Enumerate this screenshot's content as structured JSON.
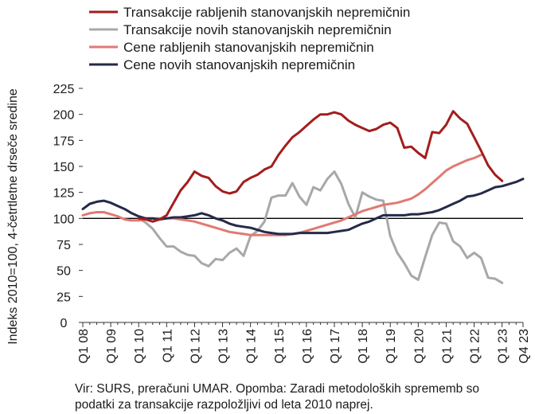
{
  "chart_data": {
    "type": "line",
    "title": "",
    "xlabel": "",
    "ylabel": "Indeks 2010=100, 4-četrtletne drseče sredine",
    "ylim": [
      0,
      225
    ],
    "yticks": [
      0,
      25,
      50,
      75,
      100,
      125,
      150,
      175,
      200,
      225
    ],
    "reference_line": 100,
    "grid": false,
    "legend_position": "top",
    "x_start": "Q1 08",
    "x_end": "Q4 23",
    "x_ticks": [
      "Q1 08",
      "Q1 09",
      "Q1 10",
      "Q1 11",
      "Q1 12",
      "Q1 13",
      "Q1 14",
      "Q1 15",
      "Q1 16",
      "Q1 17",
      "Q1 18",
      "Q1 19",
      "Q1 20",
      "Q1 21",
      "Q1 22",
      "Q1 23",
      "Q4 23"
    ],
    "series": [
      {
        "name": "Transakcije rabljenih stanovanjskih nepremičnin",
        "color": "#a31d1d",
        "start_index": 8,
        "values": [
          100,
          99,
          97,
          99,
          103,
          115,
          127,
          135,
          145,
          141,
          139,
          131,
          126,
          124,
          126,
          135,
          139,
          142,
          147,
          150,
          161,
          170,
          178,
          183,
          189,
          195,
          200,
          200,
          202,
          200,
          194,
          190,
          187,
          184,
          186,
          190,
          192,
          187,
          168,
          169,
          163,
          158,
          183,
          182,
          190,
          203,
          196,
          191,
          178,
          165,
          151,
          142,
          136
        ]
      },
      {
        "name": "Transakcije novih stanovanjskih nepremičnin",
        "color": "#a6a8ab",
        "start_index": 8,
        "values": [
          100,
          96,
          90,
          81,
          73,
          73,
          68,
          65,
          64,
          57,
          54,
          61,
          60,
          67,
          71,
          64,
          83,
          88,
          97,
          120,
          122,
          122,
          134,
          121,
          113,
          130,
          127,
          138,
          145,
          133,
          114,
          101,
          125,
          121,
          118,
          117,
          83,
          67,
          57,
          45,
          41,
          63,
          84,
          96,
          95,
          78,
          73,
          62,
          67,
          62,
          43,
          42,
          38
        ]
      },
      {
        "name": "Cene rabljenih stanovanjskih nepremičnin",
        "color": "#e07a73",
        "start_index": 0,
        "values": [
          103,
          105,
          106,
          106,
          104,
          102,
          99,
          98,
          98,
          99,
          100,
          100,
          100,
          100,
          99,
          98,
          97,
          95,
          93,
          91,
          89,
          87,
          86,
          85,
          84,
          84,
          84,
          84,
          84,
          84,
          85,
          86,
          88,
          90,
          92,
          94,
          96,
          98,
          101,
          104,
          107,
          109,
          111,
          113,
          114,
          115,
          117,
          119,
          123,
          128,
          134,
          140,
          146,
          150,
          153,
          156,
          158,
          161
        ]
      },
      {
        "name": "Cene novih stanovanjskih nepremičnin",
        "color": "#252a4a",
        "start_index": 0,
        "values": [
          109,
          114,
          116,
          117,
          115,
          112,
          109,
          105,
          102,
          100,
          100,
          99,
          100,
          101,
          101,
          102,
          103,
          105,
          103,
          100,
          98,
          95,
          93,
          92,
          91,
          89,
          87,
          86,
          85,
          85,
          85,
          86,
          86,
          86,
          86,
          86,
          87,
          88,
          89,
          92,
          95,
          97,
          100,
          103,
          103,
          103,
          103,
          104,
          104,
          105,
          106,
          108,
          111,
          114,
          117,
          121,
          122,
          124,
          127,
          130,
          131,
          133,
          135,
          138
        ]
      }
    ]
  },
  "source_note": {
    "line1": "Vir: SURS, preračuni UMAR. Opomba: Zaradi metodoloških sprememb so",
    "line2": "podatki za transakcije razpoložljivi od leta 2010 naprej."
  }
}
